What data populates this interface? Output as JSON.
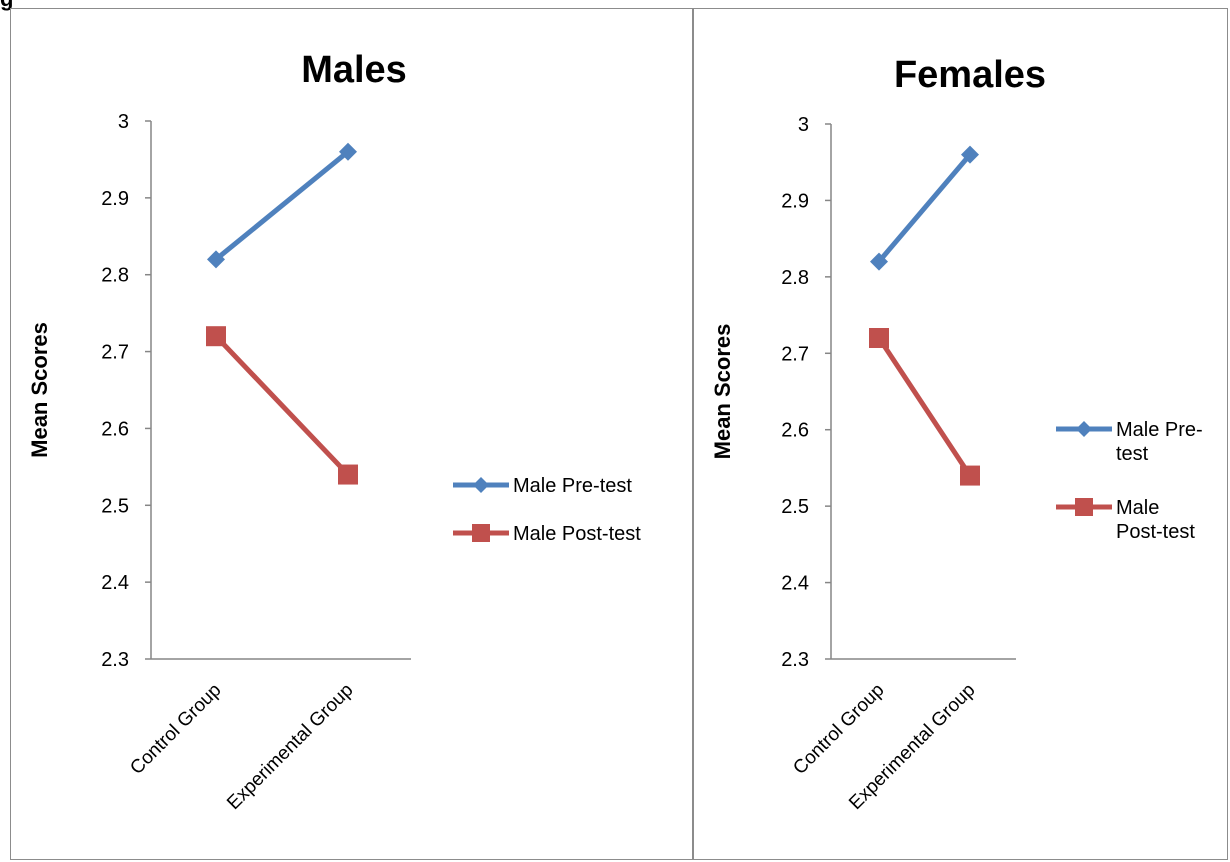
{
  "caption": "g",
  "chart_data": [
    {
      "type": "line",
      "title": "Males",
      "xlabel": "",
      "ylabel": "Mean Scores",
      "ylim": [
        2.3,
        3
      ],
      "yticks": [
        "2.3",
        "2.4",
        "2.5",
        "2.6",
        "2.7",
        "2.8",
        "2.9",
        "3"
      ],
      "categories": [
        "Control Group",
        "Experimental Group"
      ],
      "legend_position": "right",
      "series": [
        {
          "name": "Male Pre-test",
          "name_lines": [
            "Male Pre-test"
          ],
          "color": "#4f81bd",
          "marker": "diamond",
          "values": [
            2.82,
            2.96
          ]
        },
        {
          "name": "Male Post-test",
          "name_lines": [
            "Male Post-test"
          ],
          "color": "#c0504d",
          "marker": "square",
          "values": [
            2.72,
            2.54
          ]
        }
      ]
    },
    {
      "type": "line",
      "title": "Females",
      "xlabel": "",
      "ylabel": "Mean Scores",
      "ylim": [
        2.3,
        3
      ],
      "yticks": [
        "2.3",
        "2.4",
        "2.5",
        "2.6",
        "2.7",
        "2.8",
        "2.9",
        "3"
      ],
      "categories": [
        "Control Group",
        "Experimental Group"
      ],
      "legend_position": "right",
      "series": [
        {
          "name": "Male Pre-test",
          "name_lines": [
            "Male Pre-",
            "test"
          ],
          "color": "#4f81bd",
          "marker": "diamond",
          "values": [
            2.82,
            2.96
          ]
        },
        {
          "name": "Male Post-test",
          "name_lines": [
            "Male",
            "Post-test"
          ],
          "color": "#c0504d",
          "marker": "square",
          "values": [
            2.72,
            2.54
          ]
        }
      ]
    }
  ]
}
